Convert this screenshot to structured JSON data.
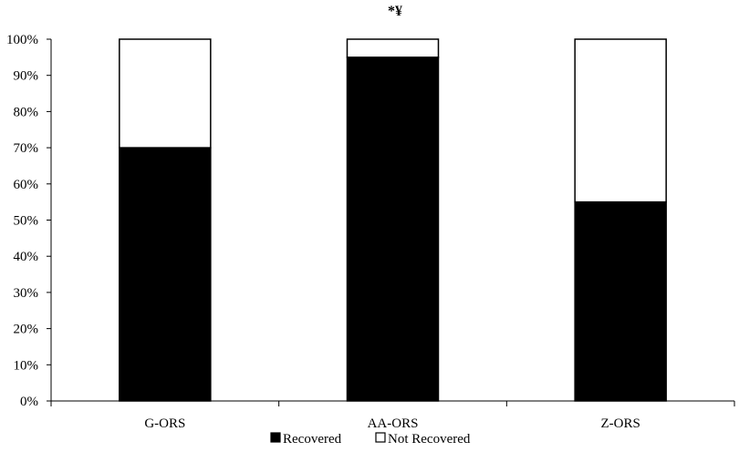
{
  "chart_data": {
    "type": "bar",
    "stacked": true,
    "categories": [
      "G-ORS",
      "AA-ORS",
      "Z-ORS"
    ],
    "series": [
      {
        "name": "Recovered",
        "values": [
          70,
          95,
          55
        ],
        "color": "#000000"
      },
      {
        "name": "Not Recovered",
        "values": [
          30,
          5,
          45
        ],
        "color": "#ffffff"
      }
    ],
    "ylim": [
      0,
      100
    ],
    "yticks": [
      "0%",
      "10%",
      "20%",
      "30%",
      "40%",
      "50%",
      "60%",
      "70%",
      "80%",
      "90%",
      "100%"
    ],
    "annotation": "*¥",
    "legend_position": "bottom",
    "grid": false
  }
}
